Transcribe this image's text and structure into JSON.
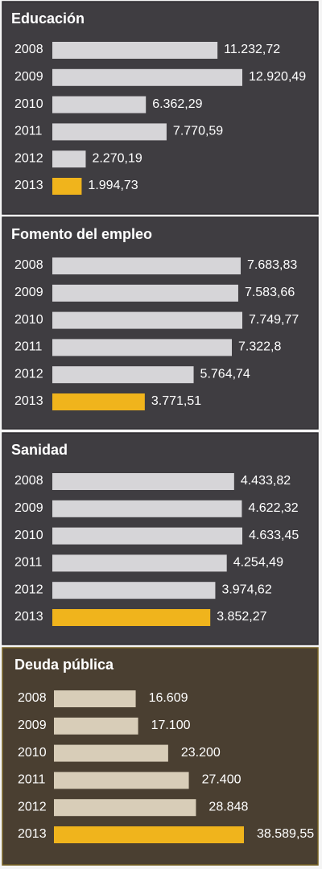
{
  "chart_data": [
    {
      "type": "bar",
      "title": "Educación",
      "categories": [
        "2008",
        "2009",
        "2010",
        "2011",
        "2012",
        "2013"
      ],
      "values": [
        11232.72,
        12920.49,
        6362.29,
        7770.59,
        2270.19,
        1994.73
      ],
      "value_labels": [
        "11.232,72",
        "12.920,49",
        "6.362,29",
        "7.770,59",
        "2.270,19",
        "1.994,73"
      ],
      "colors": [
        "#d6d5d8",
        "#d6d5d8",
        "#d6d5d8",
        "#d6d5d8",
        "#d6d5d8",
        "#f0b41c"
      ]
    },
    {
      "type": "bar",
      "title": "Fomento del empleo",
      "categories": [
        "2008",
        "2009",
        "2010",
        "2011",
        "2012",
        "2013"
      ],
      "values": [
        7683.83,
        7583.66,
        7749.77,
        7322.8,
        5764.74,
        3771.51
      ],
      "value_labels": [
        "7.683,83",
        "7.583,66",
        "7.749,77",
        "7.322,8",
        "5.764,74",
        "3.771,51"
      ],
      "colors": [
        "#d6d5d8",
        "#d6d5d8",
        "#d6d5d8",
        "#d6d5d8",
        "#d6d5d8",
        "#f0b41c"
      ]
    },
    {
      "type": "bar",
      "title": "Sanidad",
      "categories": [
        "2008",
        "2009",
        "2010",
        "2011",
        "2012",
        "2013"
      ],
      "values": [
        4433.82,
        4622.32,
        4633.45,
        4254.49,
        3974.62,
        3852.27
      ],
      "value_labels": [
        "4.433,82",
        "4.622,32",
        "4.633,45",
        "4.254,49",
        "3.974,62",
        "3.852,27"
      ],
      "colors": [
        "#d6d5d8",
        "#d6d5d8",
        "#d6d5d8",
        "#d6d5d8",
        "#d6d5d8",
        "#f0b41c"
      ]
    },
    {
      "type": "bar",
      "title": "Deuda pública",
      "categories": [
        "2008",
        "2009",
        "2010",
        "2011",
        "2012",
        "2013"
      ],
      "values": [
        16609,
        17100,
        23200,
        27400,
        28848,
        38589.55
      ],
      "value_labels": [
        "16.609",
        "17.100",
        "23.200",
        "27.400",
        "28.848",
        "38.589,55"
      ],
      "colors": [
        "#d8cdb8",
        "#d8cdb8",
        "#d8cdb8",
        "#d8cdb8",
        "#d8cdb8",
        "#f0b41c"
      ]
    }
  ]
}
